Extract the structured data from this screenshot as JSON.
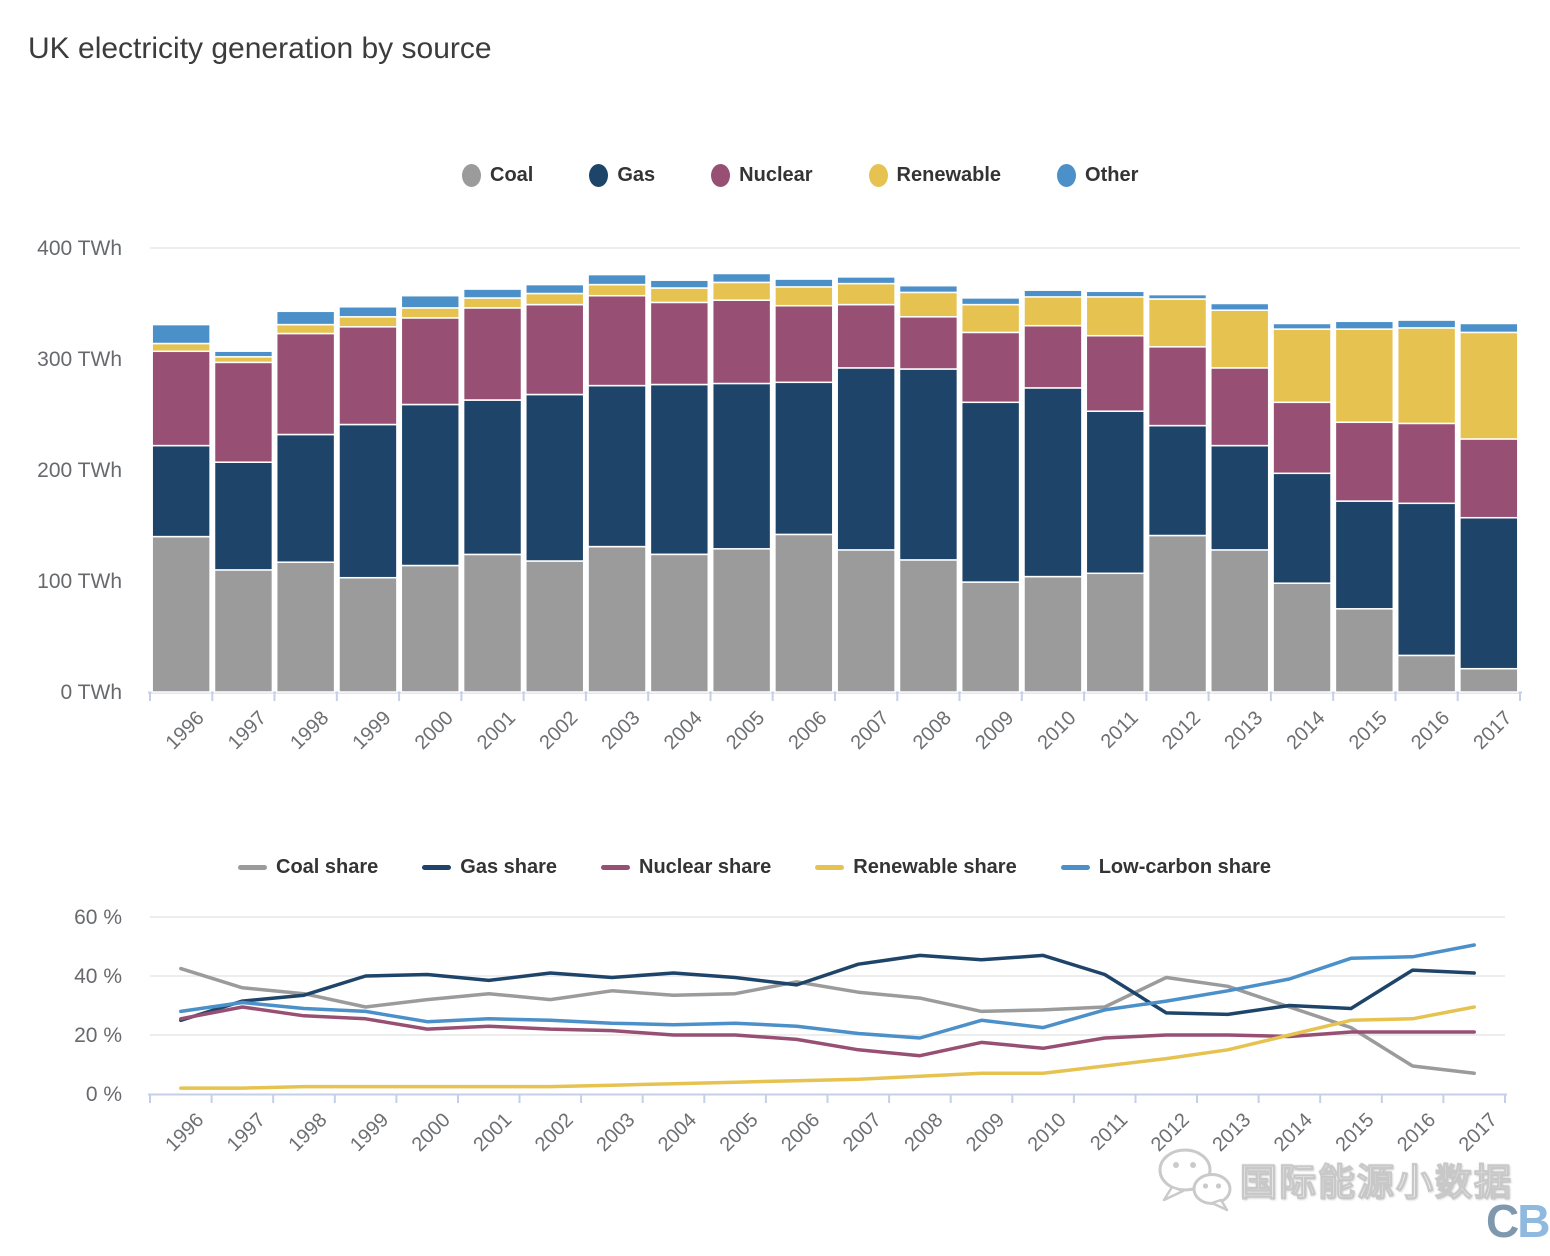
{
  "page": {
    "title": "UK electricity generation by source"
  },
  "watermark": {
    "text": "国际能源小数据",
    "logo_c": "C",
    "logo_b": "B"
  },
  "palette": {
    "coal": "#9b9b9b",
    "gas": "#1e4569",
    "nuclear": "#975074",
    "renewable": "#e6c351",
    "other_blue": "#4b90c8",
    "axis_line": "#c6cfe8",
    "grid_line": "#e7e7e7",
    "axis_text": "#67696d",
    "legend_text": "#343434",
    "title_text": "#3c3c3c"
  },
  "chart_data": [
    {
      "type": "bar",
      "stacked": true,
      "title": "UK electricity generation by source",
      "unit": "TWh",
      "legend_position": "top-center",
      "categories": [
        "1996",
        "1997",
        "1998",
        "1999",
        "2000",
        "2001",
        "2002",
        "2003",
        "2004",
        "2005",
        "2006",
        "2007",
        "2008",
        "2009",
        "2010",
        "2011",
        "2012",
        "2013",
        "2014",
        "2015",
        "2016",
        "2017"
      ],
      "series": [
        {
          "name": "Coal",
          "color": "#9b9b9b",
          "values": [
            140,
            110,
            117,
            103,
            114,
            124,
            118,
            131,
            124,
            129,
            142,
            128,
            119,
            99,
            104,
            107,
            141,
            128,
            98,
            75,
            33,
            21
          ]
        },
        {
          "name": "Gas",
          "color": "#1e4569",
          "values": [
            82,
            97,
            115,
            138,
            145,
            139,
            150,
            145,
            153,
            149,
            137,
            164,
            172,
            162,
            170,
            146,
            99,
            94,
            99,
            97,
            137,
            136
          ]
        },
        {
          "name": "Nuclear",
          "color": "#975074",
          "values": [
            85,
            90,
            91,
            88,
            78,
            83,
            81,
            81,
            74,
            75,
            69,
            57,
            47,
            63,
            56,
            68,
            71,
            70,
            64,
            71,
            72,
            71
          ]
        },
        {
          "name": "Renewable",
          "color": "#e6c351",
          "values": [
            7,
            5,
            8,
            9,
            9,
            9,
            10,
            10,
            13,
            16,
            17,
            19,
            22,
            25,
            26,
            35,
            43,
            52,
            66,
            84,
            86,
            96
          ]
        },
        {
          "name": "Other",
          "color": "#4b90c8",
          "values": [
            17,
            5,
            12,
            9,
            11,
            8,
            8,
            9,
            7,
            8,
            7,
            6,
            6,
            6,
            6,
            5,
            4,
            6,
            5,
            7,
            7,
            8
          ]
        }
      ],
      "ylim": [
        0,
        400
      ],
      "yticks": [
        {
          "value": 0,
          "label": "0 TWh"
        },
        {
          "value": 100,
          "label": "100 TWh"
        },
        {
          "value": 200,
          "label": "200 TWh"
        },
        {
          "value": 300,
          "label": "300 TWh"
        },
        {
          "value": 400,
          "label": "400 TWh"
        }
      ],
      "grid_values": [
        400
      ]
    },
    {
      "type": "line",
      "unit": "%",
      "legend_position": "top-left",
      "categories": [
        "1996",
        "1997",
        "1998",
        "1999",
        "2000",
        "2001",
        "2002",
        "2003",
        "2004",
        "2005",
        "2006",
        "2007",
        "2008",
        "2009",
        "2010",
        "2011",
        "2012",
        "2013",
        "2014",
        "2015",
        "2016",
        "2017"
      ],
      "series": [
        {
          "name": "Coal share",
          "color": "#9b9b9b",
          "values": [
            42.5,
            36,
            34,
            29.5,
            32,
            34,
            32,
            35,
            33.5,
            34,
            38,
            34.5,
            32.5,
            28,
            28.5,
            29.5,
            39.5,
            36.5,
            29.5,
            22.5,
            9.5,
            7
          ]
        },
        {
          "name": "Gas share",
          "color": "#1e4569",
          "values": [
            25,
            31.5,
            33.5,
            40,
            40.5,
            38.5,
            41,
            39.5,
            41,
            39.5,
            37,
            44,
            47,
            45.5,
            47,
            40.5,
            27.5,
            27,
            30,
            29,
            42,
            41
          ]
        },
        {
          "name": "Nuclear share",
          "color": "#975074",
          "values": [
            25.5,
            29.5,
            26.5,
            25.5,
            22,
            23,
            22,
            21.5,
            20,
            20,
            18.5,
            15,
            13,
            17.5,
            15.5,
            19,
            20,
            20,
            19.5,
            21,
            21,
            21
          ]
        },
        {
          "name": "Renewable share",
          "color": "#e6c351",
          "values": [
            2,
            2,
            2.5,
            2.5,
            2.5,
            2.5,
            2.5,
            3,
            3.5,
            4,
            4.5,
            5,
            6,
            7,
            7,
            9.5,
            12,
            15,
            20,
            25,
            25.5,
            29.5
          ]
        },
        {
          "name": "Low-carbon share",
          "color": "#4b90c8",
          "values": [
            28,
            31,
            29,
            28,
            24.5,
            25.5,
            25,
            24,
            23.5,
            24,
            23,
            20.5,
            19,
            25,
            22.5,
            28.5,
            31.5,
            35,
            39,
            46,
            46.5,
            50.5
          ]
        }
      ],
      "ylim": [
        0,
        60
      ],
      "yticks": [
        {
          "value": 0,
          "label": "0 %"
        },
        {
          "value": 20,
          "label": "20 %"
        },
        {
          "value": 40,
          "label": "40 %"
        },
        {
          "value": 60,
          "label": "60 %"
        }
      ],
      "grid_values": [
        20,
        40,
        60
      ]
    }
  ]
}
